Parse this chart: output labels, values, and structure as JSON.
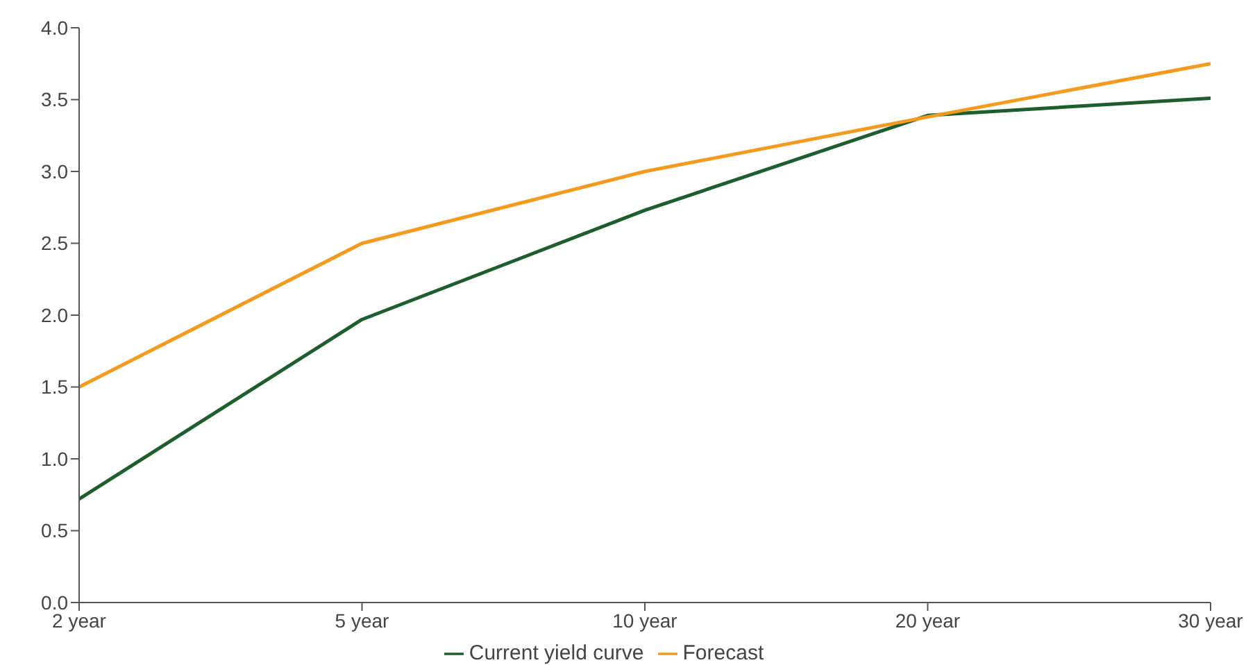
{
  "chart_data": {
    "type": "line",
    "categories": [
      "2 year",
      "5 year",
      "10 year",
      "20 year",
      "30 year"
    ],
    "series": [
      {
        "name": "Current yield curve",
        "color": "#1e5e2e",
        "values": [
          0.72,
          1.97,
          2.73,
          3.39,
          3.51
        ]
      },
      {
        "name": "Forecast",
        "color": "#f39a1f",
        "values": [
          1.5,
          2.5,
          3.0,
          3.38,
          3.75
        ]
      }
    ],
    "ylim": [
      0,
      4
    ],
    "yticks": [
      {
        "value": 0,
        "label": "0.0"
      },
      {
        "value": 0.5,
        "label": "0.5"
      },
      {
        "value": 1,
        "label": "1.0"
      },
      {
        "value": 1.5,
        "label": "1.5"
      },
      {
        "value": 2,
        "label": "2.0"
      },
      {
        "value": 2.5,
        "label": "2.5"
      },
      {
        "value": 3,
        "label": "3.0"
      },
      {
        "value": 3.5,
        "label": "3.5"
      },
      {
        "value": 4,
        "label": "4.0"
      }
    ],
    "grid": false,
    "legend": "bottom",
    "marker": "none",
    "line_style": "solid"
  }
}
